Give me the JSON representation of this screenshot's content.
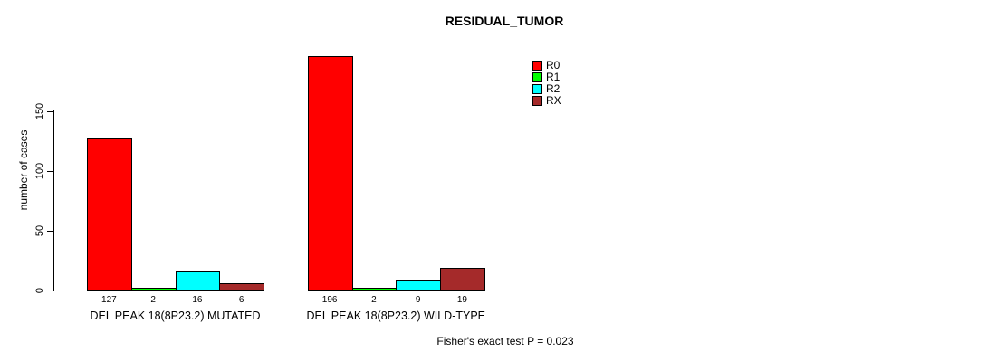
{
  "page": {
    "background": "#ffffff"
  },
  "chart_data": {
    "type": "bar",
    "title": "RESIDUAL_TUMOR",
    "xlabel": "",
    "ylabel": "number of cases",
    "yticks": [
      0,
      50,
      100,
      150
    ],
    "ylim": [
      0,
      200
    ],
    "grid": false,
    "legend_position": "top-right",
    "categories": [
      "DEL PEAK 18(8P23.2) MUTATED",
      "DEL PEAK 18(8P23.2) WILD-TYPE"
    ],
    "series": [
      {
        "name": "R0",
        "color": "#ff0000",
        "values": [
          127,
          196
        ]
      },
      {
        "name": "R1",
        "color": "#00ff00",
        "values": [
          2,
          2
        ]
      },
      {
        "name": "R2",
        "color": "#00ffff",
        "values": [
          16,
          9
        ]
      },
      {
        "name": "RX",
        "color": "#a52a2a",
        "values": [
          6,
          19
        ]
      }
    ],
    "bar_value_labels": [
      [
        "127",
        "2",
        "16",
        "6"
      ],
      [
        "196",
        "2",
        "9",
        "19"
      ]
    ],
    "annotation": "Fisher's exact test P = 0.023"
  }
}
